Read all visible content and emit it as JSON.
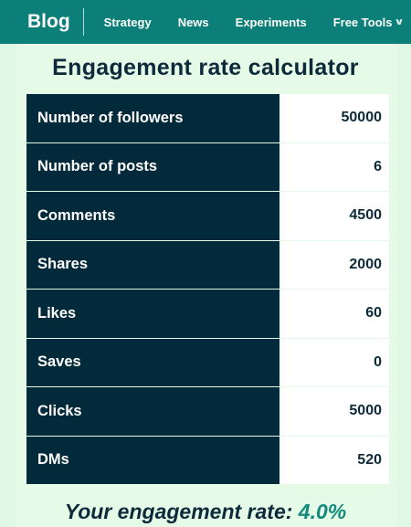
{
  "nav": {
    "brand": "Blog",
    "items": [
      {
        "label": "Strategy"
      },
      {
        "label": "News"
      },
      {
        "label": "Experiments"
      },
      {
        "label": "Free Tools"
      }
    ],
    "dropdown_icon": "chevron-down-icon"
  },
  "calculator": {
    "title": "Engagement rate calculator",
    "rows": [
      {
        "label": "Number of followers",
        "value": "50000"
      },
      {
        "label": "Number of posts",
        "value": "6"
      },
      {
        "label": "Comments",
        "value": "4500"
      },
      {
        "label": "Shares",
        "value": "2000"
      },
      {
        "label": "Likes",
        "value": "60"
      },
      {
        "label": "Saves",
        "value": "0"
      },
      {
        "label": "Clicks",
        "value": "5000"
      },
      {
        "label": "DMs",
        "value": "520"
      }
    ],
    "result_label": "Your engagement rate:",
    "result_value": "4.0%"
  },
  "colors": {
    "nav_bg": "#0b7f78",
    "label_bg": "#032a3b",
    "page_bg": "#dff8e3",
    "accent": "#138b7c"
  }
}
